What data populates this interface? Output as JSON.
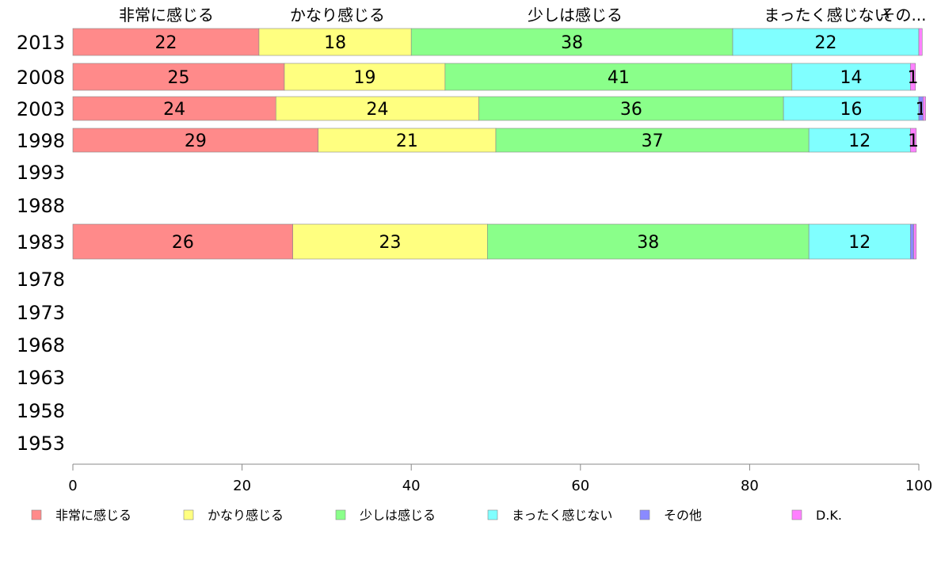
{
  "chart_data": {
    "type": "bar",
    "orientation": "horizontal",
    "stacked": true,
    "categories": [
      "2013",
      "2008",
      "2003",
      "1998",
      "1993",
      "1988",
      "1983",
      "1978",
      "1973",
      "1968",
      "1963",
      "1958",
      "1953"
    ],
    "series": [
      {
        "name": "非常に感じる",
        "color": "#ff8a8a",
        "values": [
          22,
          25,
          24,
          29,
          null,
          null,
          26,
          null,
          null,
          null,
          null,
          null,
          null
        ]
      },
      {
        "name": "かなり感じる",
        "color": "#ffff80",
        "values": [
          18,
          19,
          24,
          21,
          null,
          null,
          23,
          null,
          null,
          null,
          null,
          null,
          null
        ]
      },
      {
        "name": "少しは感じる",
        "color": "#8aff8a",
        "values": [
          38,
          41,
          36,
          37,
          null,
          null,
          38,
          null,
          null,
          null,
          null,
          null,
          null
        ]
      },
      {
        "name": "まったく感じない",
        "color": "#80ffff",
        "values": [
          22,
          14,
          16,
          12,
          null,
          null,
          12,
          null,
          null,
          null,
          null,
          null,
          null
        ]
      },
      {
        "name": "その他",
        "color": "#8a8aff",
        "values": [
          0,
          0,
          0.5,
          0,
          null,
          null,
          0.4,
          null,
          null,
          null,
          null,
          null,
          null
        ]
      },
      {
        "name": "D.K.",
        "color": "#ff80ff",
        "values": [
          0.4,
          0.6,
          0.3,
          0.7,
          null,
          null,
          0.3,
          null,
          null,
          null,
          null,
          null,
          null
        ]
      }
    ],
    "data_labels": [
      [
        "22",
        "18",
        "38",
        "22",
        "",
        ""
      ],
      [
        "25",
        "19",
        "41",
        "14",
        "",
        "1"
      ],
      [
        "24",
        "24",
        "36",
        "16",
        "1",
        ""
      ],
      [
        "29",
        "21",
        "37",
        "12",
        "",
        "1"
      ],
      [
        "",
        "",
        "",
        "",
        "",
        ""
      ],
      [
        "",
        "",
        "",
        "",
        "",
        ""
      ],
      [
        "26",
        "23",
        "38",
        "12",
        "",
        ""
      ],
      [
        "",
        "",
        "",
        "",
        "",
        ""
      ],
      [
        "",
        "",
        "",
        "",
        "",
        ""
      ],
      [
        "",
        "",
        "",
        "",
        "",
        ""
      ],
      [
        "",
        "",
        "",
        "",
        "",
        ""
      ],
      [
        "",
        "",
        "",
        "",
        "",
        ""
      ],
      [
        "",
        "",
        "",
        "",
        "",
        ""
      ]
    ],
    "top_labels": [
      "非常に感じる",
      "かなり感じる",
      "少しは感じる",
      "まったく感じない",
      "その..."
    ],
    "xlim": [
      0,
      100
    ],
    "xticks": [
      "0",
      "20",
      "40",
      "60",
      "80",
      "100"
    ],
    "grid": false,
    "legend_position": "bottom"
  }
}
